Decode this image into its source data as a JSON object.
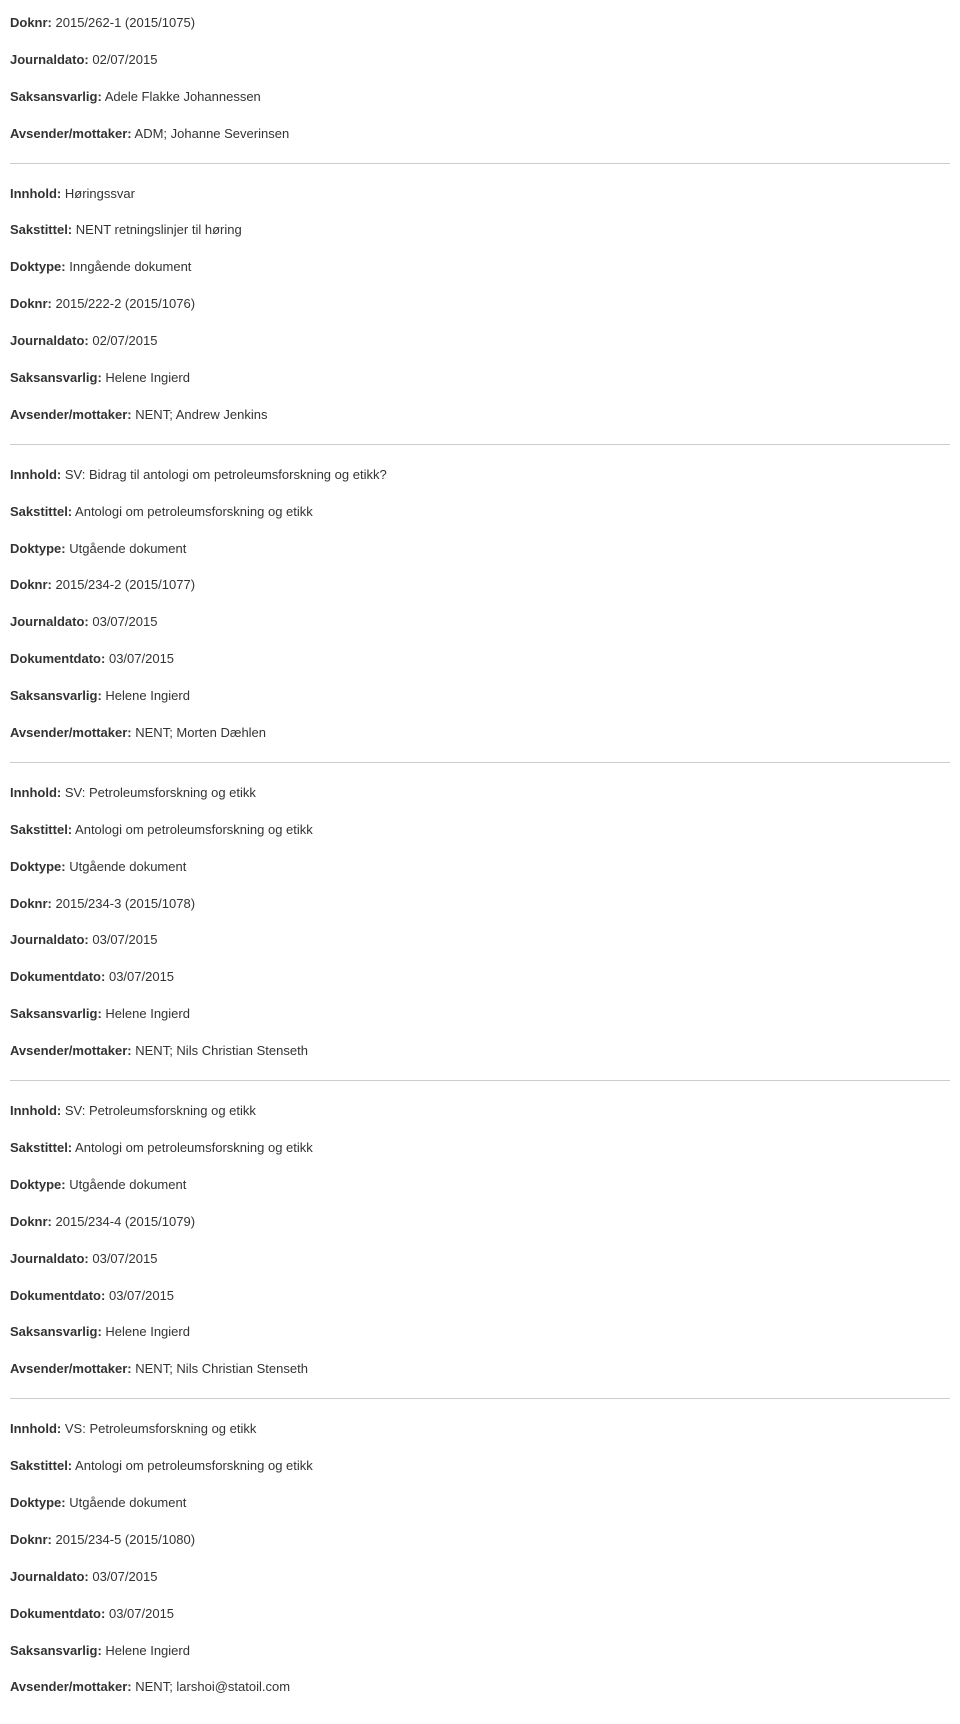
{
  "labels": {
    "doknr": "Doknr:",
    "journaldato": "Journaldato:",
    "saksansvarlig": "Saksansvarlig:",
    "avsender": "Avsender/mottaker:",
    "innhold": "Innhold:",
    "sakstittel": "Sakstittel:",
    "doktype": "Doktype:",
    "dokumentdato": "Dokumentdato:"
  },
  "entries": [
    {
      "doknr": "2015/262-1 (2015/1075)",
      "journaldato": "02/07/2015",
      "saksansvarlig": "Adele Flakke Johannessen",
      "avsender": "ADM; Johanne Severinsen"
    },
    {
      "innhold": "Høringssvar",
      "sakstittel": "NENT retningslinjer til høring",
      "doktype": "Inngående dokument",
      "doknr": "2015/222-2 (2015/1076)",
      "journaldato": "02/07/2015",
      "saksansvarlig": "Helene Ingierd",
      "avsender": "NENT; Andrew Jenkins"
    },
    {
      "innhold": "SV: Bidrag til antologi om petroleumsforskning og etikk?",
      "sakstittel": "Antologi om petroleumsforskning og etikk",
      "doktype": "Utgående dokument",
      "doknr": "2015/234-2 (2015/1077)",
      "journaldato": "03/07/2015",
      "dokumentdato": "03/07/2015",
      "saksansvarlig": "Helene Ingierd",
      "avsender": "NENT; Morten Dæhlen"
    },
    {
      "innhold": "SV: Petroleumsforskning og etikk",
      "sakstittel": "Antologi om petroleumsforskning og etikk",
      "doktype": "Utgående dokument",
      "doknr": "2015/234-3 (2015/1078)",
      "journaldato": "03/07/2015",
      "dokumentdato": "03/07/2015",
      "saksansvarlig": "Helene Ingierd",
      "avsender": "NENT; Nils Christian Stenseth"
    },
    {
      "innhold": "SV: Petroleumsforskning og etikk",
      "sakstittel": "Antologi om petroleumsforskning og etikk",
      "doktype": "Utgående dokument",
      "doknr": "2015/234-4 (2015/1079)",
      "journaldato": "03/07/2015",
      "dokumentdato": "03/07/2015",
      "saksansvarlig": "Helene Ingierd",
      "avsender": "NENT; Nils Christian Stenseth"
    },
    {
      "innhold": "VS: Petroleumsforskning og etikk",
      "sakstittel": "Antologi om petroleumsforskning og etikk",
      "doktype": "Utgående dokument",
      "doknr": "2015/234-5 (2015/1080)",
      "journaldato": "03/07/2015",
      "dokumentdato": "03/07/2015",
      "saksansvarlig": "Helene Ingierd",
      "avsender": "NENT; larshoi@statoil.com"
    }
  ]
}
